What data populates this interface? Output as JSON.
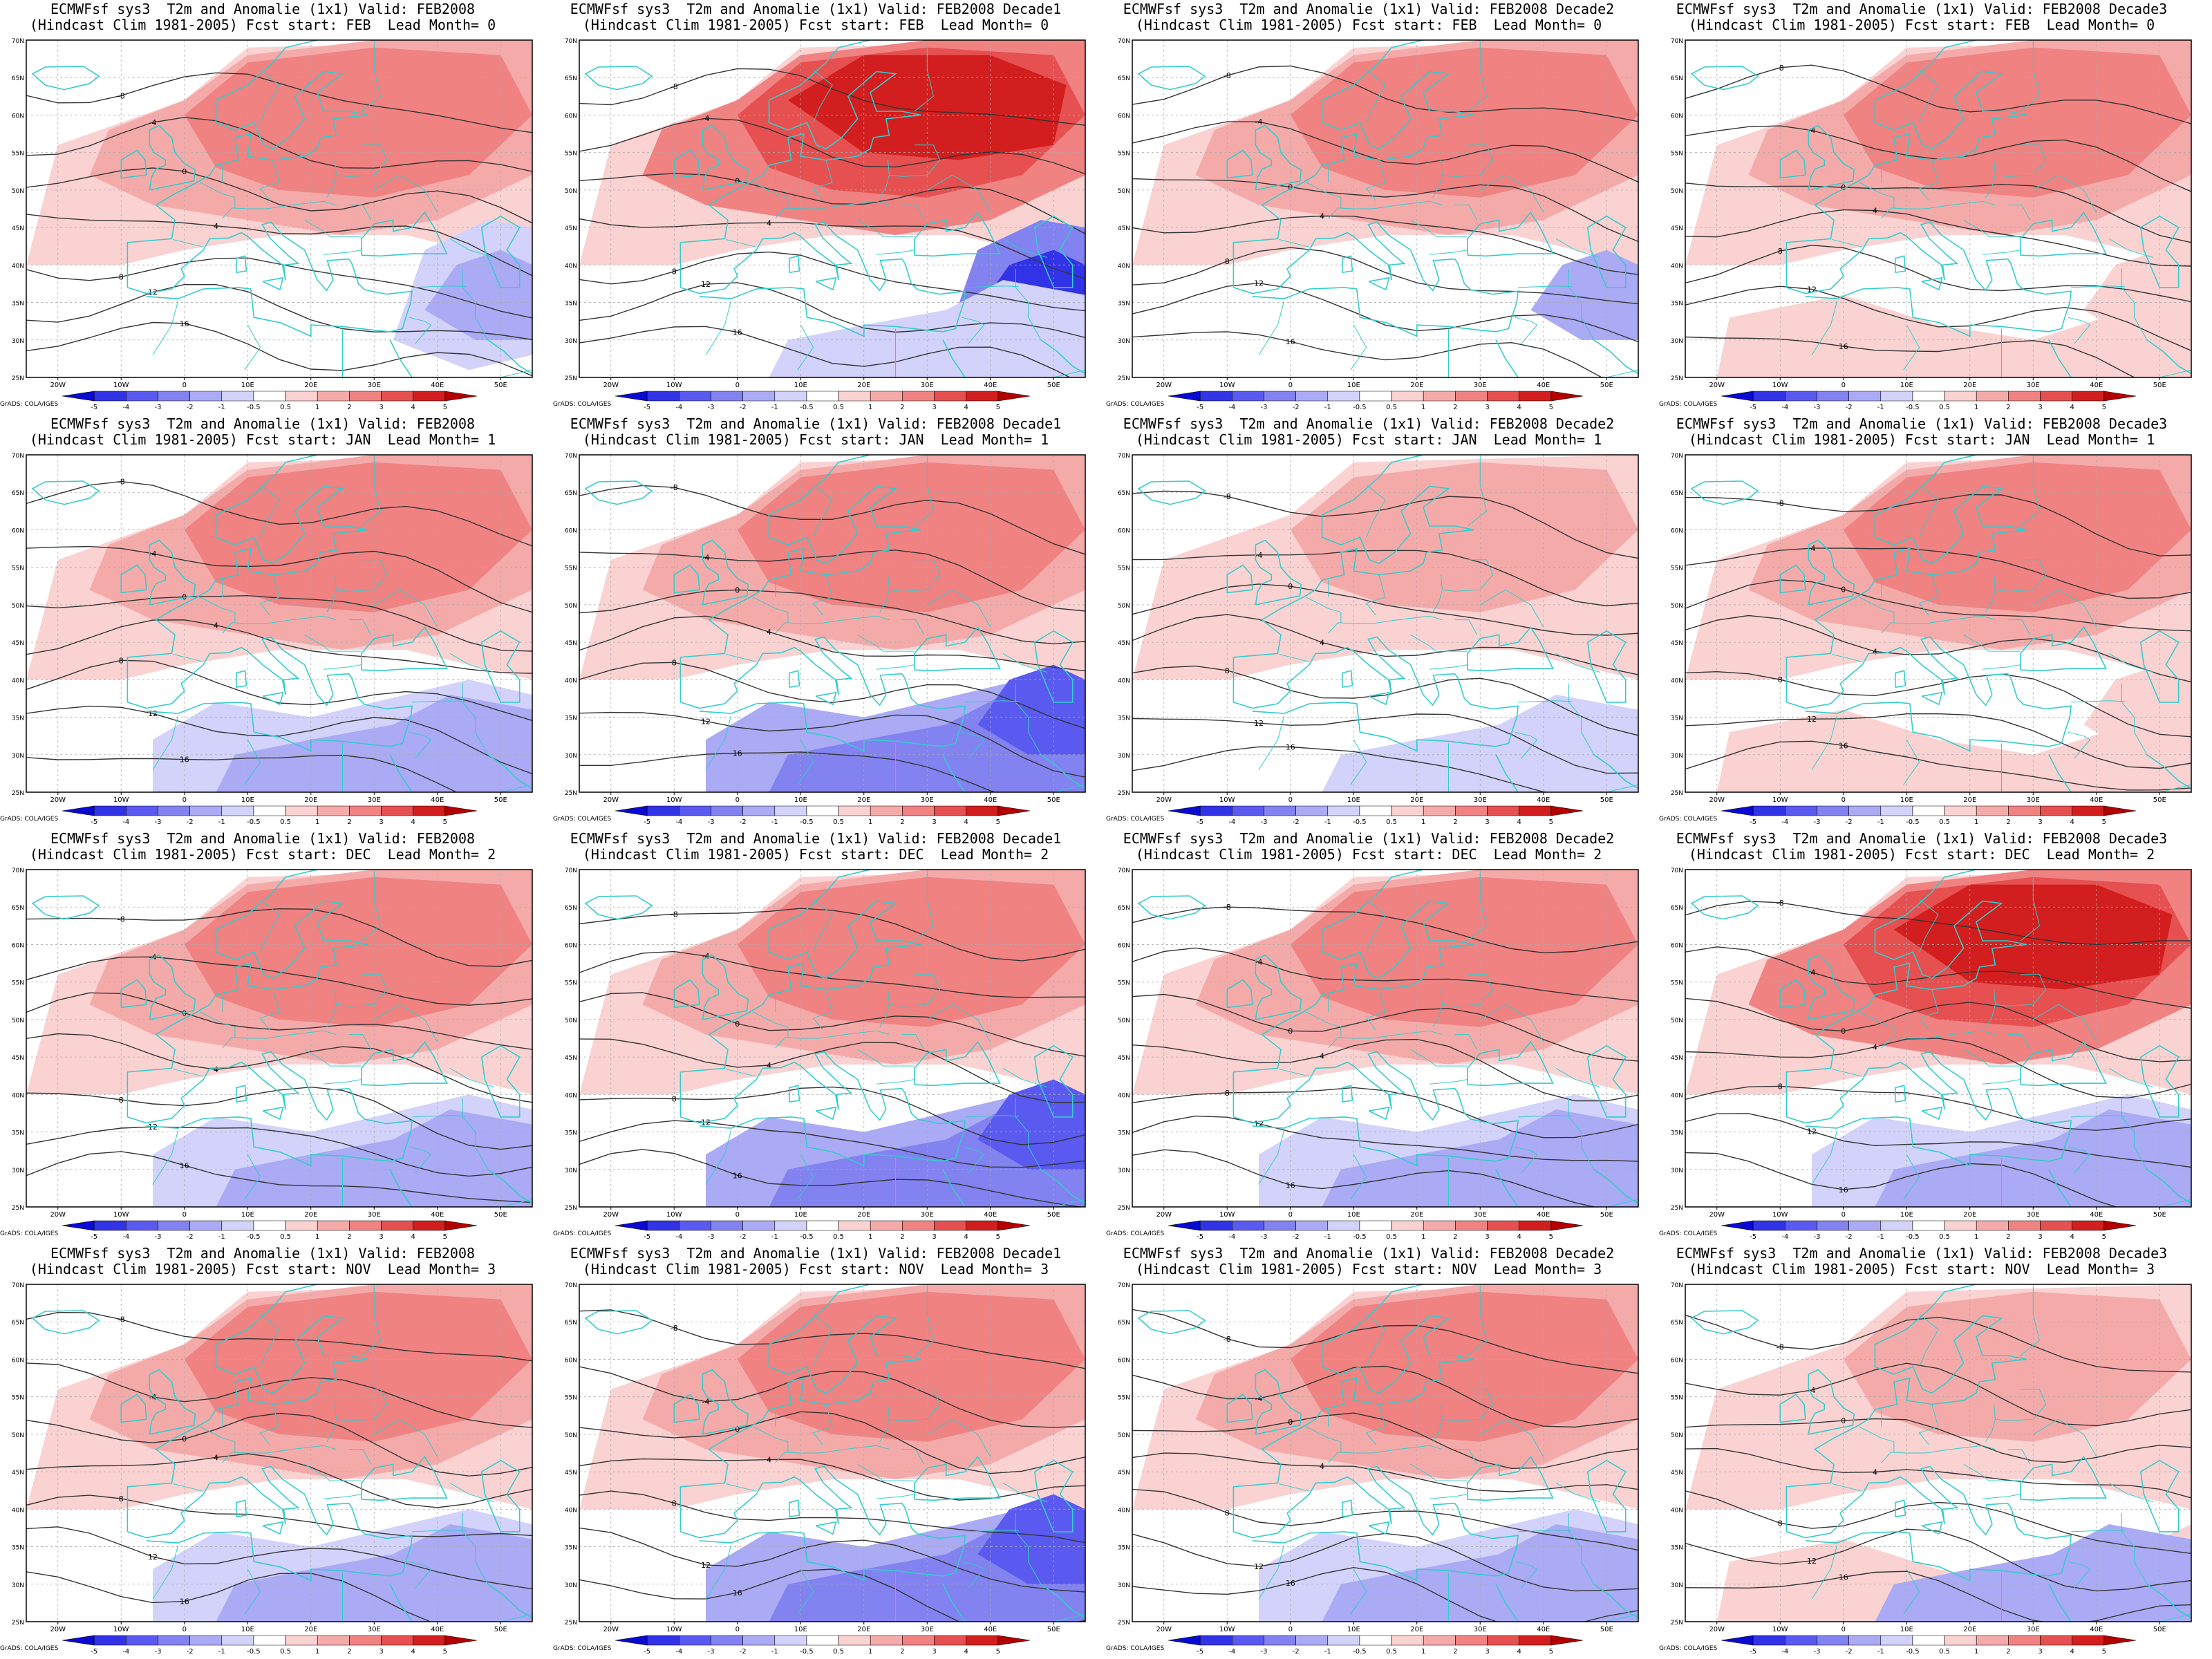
{
  "figure": {
    "rows": [
      {
        "fcst_start": "FEB",
        "lead_month": "0",
        "panels": [
          {
            "title1": "ECMWFsf sys3  T2m and Anomalie (1x1) Valid: FEB2008",
            "title2": "(Hindcast Clim 1981-2005) Fcst start: FEB  Lead Month= 0",
            "pattern": "warm-north-cool-east-mild"
          },
          {
            "title1": "ECMWFsf sys3  T2m and Anomalie (1x1) Valid: FEB2008 Decade1",
            "title2": "(Hindcast Clim 1981-2005) Fcst start: FEB  Lead Month= 0",
            "pattern": "strong-warm-north-strong-cool-east"
          },
          {
            "title1": "ECMWFsf sys3  T2m and Anomalie (1x1) Valid: FEB2008 Decade2",
            "title2": "(Hindcast Clim 1981-2005) Fcst start: FEB  Lead Month= 0",
            "pattern": "warm-broad"
          },
          {
            "title1": "ECMWFsf sys3  T2m and Anomalie (1x1) Valid: FEB2008 Decade3",
            "title2": "(Hindcast Clim 1981-2005) Fcst start: FEB  Lead Month= 0",
            "pattern": "warm-broad-south"
          }
        ]
      },
      {
        "fcst_start": "JAN",
        "lead_month": "1",
        "panels": [
          {
            "title1": "ECMWFsf sys3  T2m and Anomalie (1x1) Valid: FEB2008",
            "title2": "(Hindcast Clim 1981-2005) Fcst start: JAN  Lead Month= 1",
            "pattern": "warm-north-cool-south"
          },
          {
            "title1": "ECMWFsf sys3  T2m and Anomalie (1x1) Valid: FEB2008 Decade1",
            "title2": "(Hindcast Clim 1981-2005) Fcst start: JAN  Lead Month= 1",
            "pattern": "warm-north-strong-cool-south"
          },
          {
            "title1": "ECMWFsf sys3  T2m and Anomalie (1x1) Valid: FEB2008 Decade2",
            "title2": "(Hindcast Clim 1981-2005) Fcst start: JAN  Lead Month= 1",
            "pattern": "mild-warm"
          },
          {
            "title1": "ECMWFsf sys3  T2m and Anomalie (1x1) Valid: FEB2008 Decade3",
            "title2": "(Hindcast Clim 1981-2005) Fcst start: JAN  Lead Month= 1",
            "pattern": "warm-broad-south"
          }
        ]
      },
      {
        "fcst_start": "DEC",
        "lead_month": "2",
        "panels": [
          {
            "title1": "ECMWFsf sys3  T2m and Anomalie (1x1) Valid: FEB2008",
            "title2": "(Hindcast Clim 1981-2005) Fcst start: DEC  Lead Month= 2",
            "pattern": "warm-north-cool-south"
          },
          {
            "title1": "ECMWFsf sys3  T2m and Anomalie (1x1) Valid: FEB2008 Decade1",
            "title2": "(Hindcast Clim 1981-2005) Fcst start: DEC  Lead Month= 2",
            "pattern": "warm-north-strong-cool-south"
          },
          {
            "title1": "ECMWFsf sys3  T2m and Anomalie (1x1) Valid: FEB2008 Decade2",
            "title2": "(Hindcast Clim 1981-2005) Fcst start: DEC  Lead Month= 2",
            "pattern": "warm-north-cool-south"
          },
          {
            "title1": "ECMWFsf sys3  T2m and Anomalie (1x1) Valid: FEB2008 Decade3",
            "title2": "(Hindcast Clim 1981-2005) Fcst start: DEC  Lead Month= 2",
            "pattern": "strong-warm-north-cool-south"
          }
        ]
      },
      {
        "fcst_start": "NOV",
        "lead_month": "3",
        "panels": [
          {
            "title1": "ECMWFsf sys3  T2m and Anomalie (1x1) Valid: FEB2008",
            "title2": "(Hindcast Clim 1981-2005) Fcst start: NOV  Lead Month= 3",
            "pattern": "warm-north-cool-south"
          },
          {
            "title1": "ECMWFsf sys3  T2m and Anomalie (1x1) Valid: FEB2008 Decade1",
            "title2": "(Hindcast Clim 1981-2005) Fcst start: NOV  Lead Month= 3",
            "pattern": "warm-north-strong-cool-south"
          },
          {
            "title1": "ECMWFsf sys3  T2m and Anomalie (1x1) Valid: FEB2008 Decade2",
            "title2": "(Hindcast Clim 1981-2005) Fcst start: NOV  Lead Month= 3",
            "pattern": "warm-north-cool-south"
          },
          {
            "title1": "ECMWFsf sys3  T2m and Anomalie (1x1) Valid: FEB2008 Decade3",
            "title2": "(Hindcast Clim 1981-2005) Fcst start: NOV  Lead Month= 3",
            "pattern": "mild-warm-south-cool"
          }
        ]
      }
    ],
    "x_ticks": [
      "20W",
      "10W",
      "0",
      "10E",
      "20E",
      "30E",
      "40E",
      "50E"
    ],
    "y_ticks": [
      "70N",
      "65N",
      "60N",
      "55N",
      "50N",
      "45N",
      "40N",
      "35N",
      "30N",
      "25N"
    ],
    "lon_range": [
      -25,
      55
    ],
    "lat_range": [
      25,
      70
    ],
    "colorbar_labels": [
      "-5",
      "-4",
      "-3",
      "-2",
      "-1",
      "-0.5",
      "0.5",
      "1",
      "2",
      "3",
      "4",
      "5"
    ],
    "colorbar_colors": [
      "#0a0ad2",
      "#3232e6",
      "#5a5af0",
      "#8282f0",
      "#aaaaf5",
      "#d2d2fa",
      "#ffffff",
      "#fad2d2",
      "#f5aaaa",
      "#f08282",
      "#e65050",
      "#d21e1e",
      "#b40000"
    ],
    "credit": "GrADS: COLA/IGES",
    "contour_labels": [
      "-8",
      "-4",
      "0",
      "4",
      "8",
      "12",
      "16"
    ],
    "coast_color": "#33cccc"
  }
}
